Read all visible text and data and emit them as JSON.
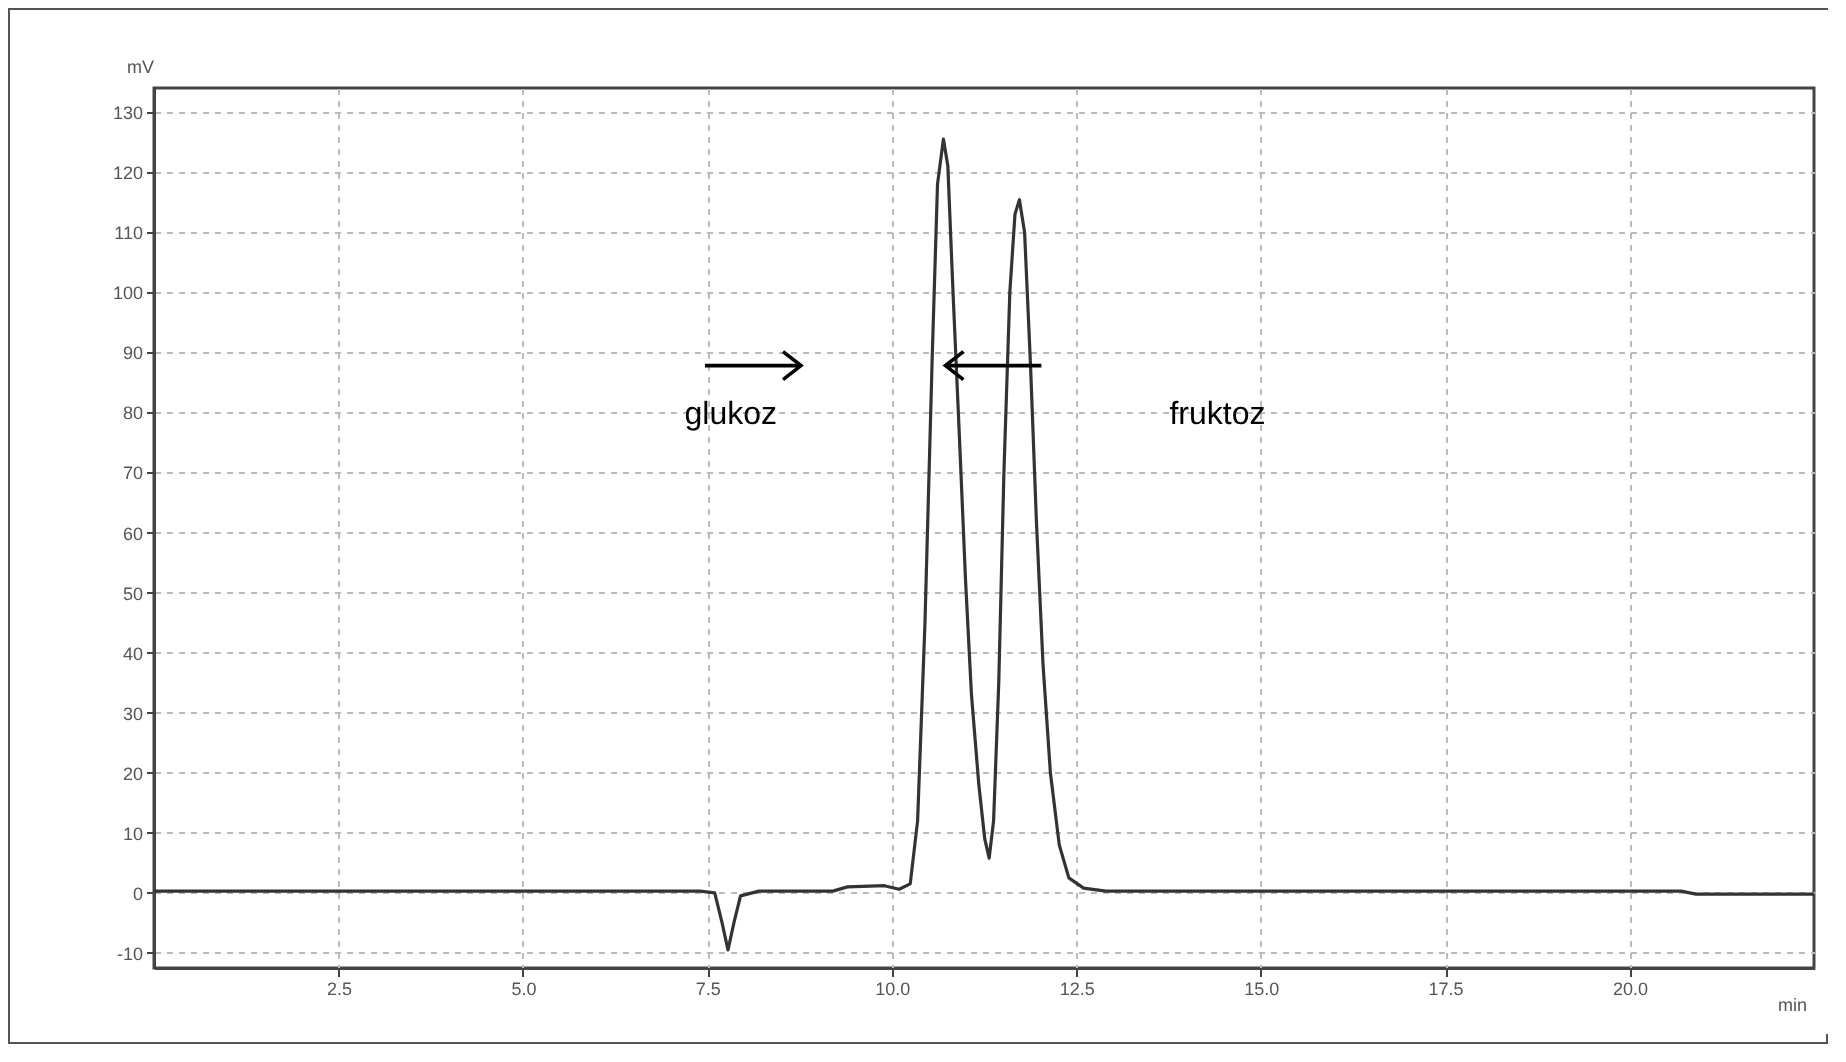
{
  "chart_data": {
    "type": "line",
    "xlabel": "min",
    "ylabel": "mV",
    "x": [
      0,
      7.4,
      7.6,
      7.7,
      7.78,
      7.86,
      7.95,
      8.2,
      9.2,
      9.4,
      9.9,
      10.1,
      10.25,
      10.35,
      10.45,
      10.55,
      10.62,
      10.7,
      10.76,
      10.83,
      10.92,
      11.0,
      11.08,
      11.18,
      11.26,
      11.32,
      11.38,
      11.45,
      11.52,
      11.6,
      11.67,
      11.73,
      11.8,
      11.88,
      11.96,
      12.05,
      12.15,
      12.27,
      12.4,
      12.6,
      12.9,
      20.7,
      20.9,
      22.5
    ],
    "series": [
      {
        "color": "#333333",
        "values": [
          0.3,
          0.3,
          0,
          -5,
          -9.5,
          -5,
          -0.5,
          0.3,
          0.3,
          1,
          1.2,
          0.6,
          1.5,
          12,
          45,
          90,
          118,
          125.5,
          121,
          100,
          75,
          52,
          33,
          18,
          9,
          5.8,
          12,
          35,
          70,
          100,
          113,
          115.4,
          110,
          88,
          62,
          38,
          20,
          8,
          2.5,
          0.8,
          0.3,
          0.3,
          -0.2,
          -0.2
        ]
      }
    ],
    "xlim": [
      0,
      22.5
    ],
    "xticks": [
      2.5,
      {
        "value": 5,
        "label": "5.0"
      },
      7.5,
      {
        "value": 10,
        "label": "10.0"
      },
      12.5,
      {
        "value": 15,
        "label": "15.0"
      },
      17.5,
      {
        "value": 20,
        "label": "20.0"
      }
    ],
    "ylim": [
      -12.5,
      134
    ],
    "yticks": [
      -10,
      0,
      10,
      20,
      30,
      40,
      50,
      60,
      70,
      80,
      90,
      100,
      110,
      120,
      130
    ],
    "grid": true,
    "line_style": "solid",
    "marker": "none",
    "annotations": [
      "glukoz",
      "fruktoz"
    ]
  }
}
